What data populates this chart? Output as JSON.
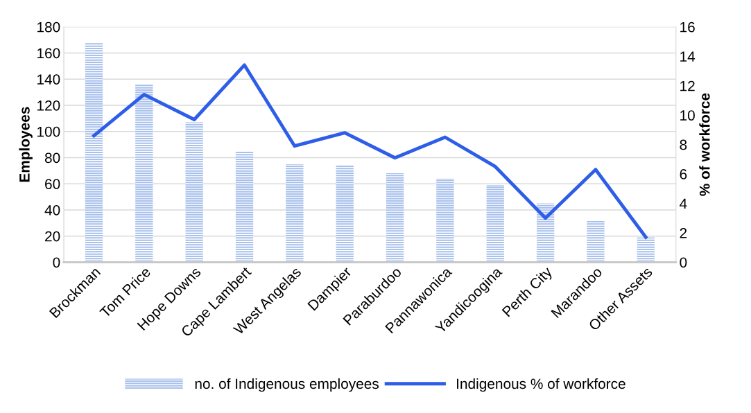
{
  "chart_data": {
    "type": "bar",
    "categories": [
      "Brockman",
      "Tom Price",
      "Hope Downs",
      "Cape Lambert",
      "West Angelas",
      "Dampier",
      "Paraburdoo",
      "Pannawonica",
      "Yandicoogina",
      "Perth City",
      "Marandoo",
      "Other Assets"
    ],
    "series": [
      {
        "name": "no. of Indigenous employees",
        "color": "#a7c0ec",
        "values": [
          168,
          136,
          107,
          85,
          75,
          74,
          68,
          64,
          59,
          45,
          32,
          19
        ]
      },
      {
        "name": "Indigenous % of workforce",
        "type": "line",
        "axis": "y2",
        "color": "#2e5ee8",
        "values": [
          8.6,
          11.4,
          9.7,
          13.4,
          7.9,
          8.8,
          7.1,
          8.5,
          6.5,
          3.0,
          6.3,
          1.7
        ]
      }
    ],
    "ylabel": "Employees",
    "y2label": "% of workforce",
    "ylim": [
      0,
      180
    ],
    "yticks": [
      0,
      20,
      40,
      60,
      80,
      100,
      120,
      140,
      160,
      180
    ],
    "y2lim": [
      0,
      16
    ],
    "y2ticks": [
      0,
      2,
      4,
      6,
      8,
      10,
      12,
      14,
      16
    ],
    "grid": "y",
    "legend": "bottom",
    "marker": "none",
    "line_style": "solid"
  }
}
